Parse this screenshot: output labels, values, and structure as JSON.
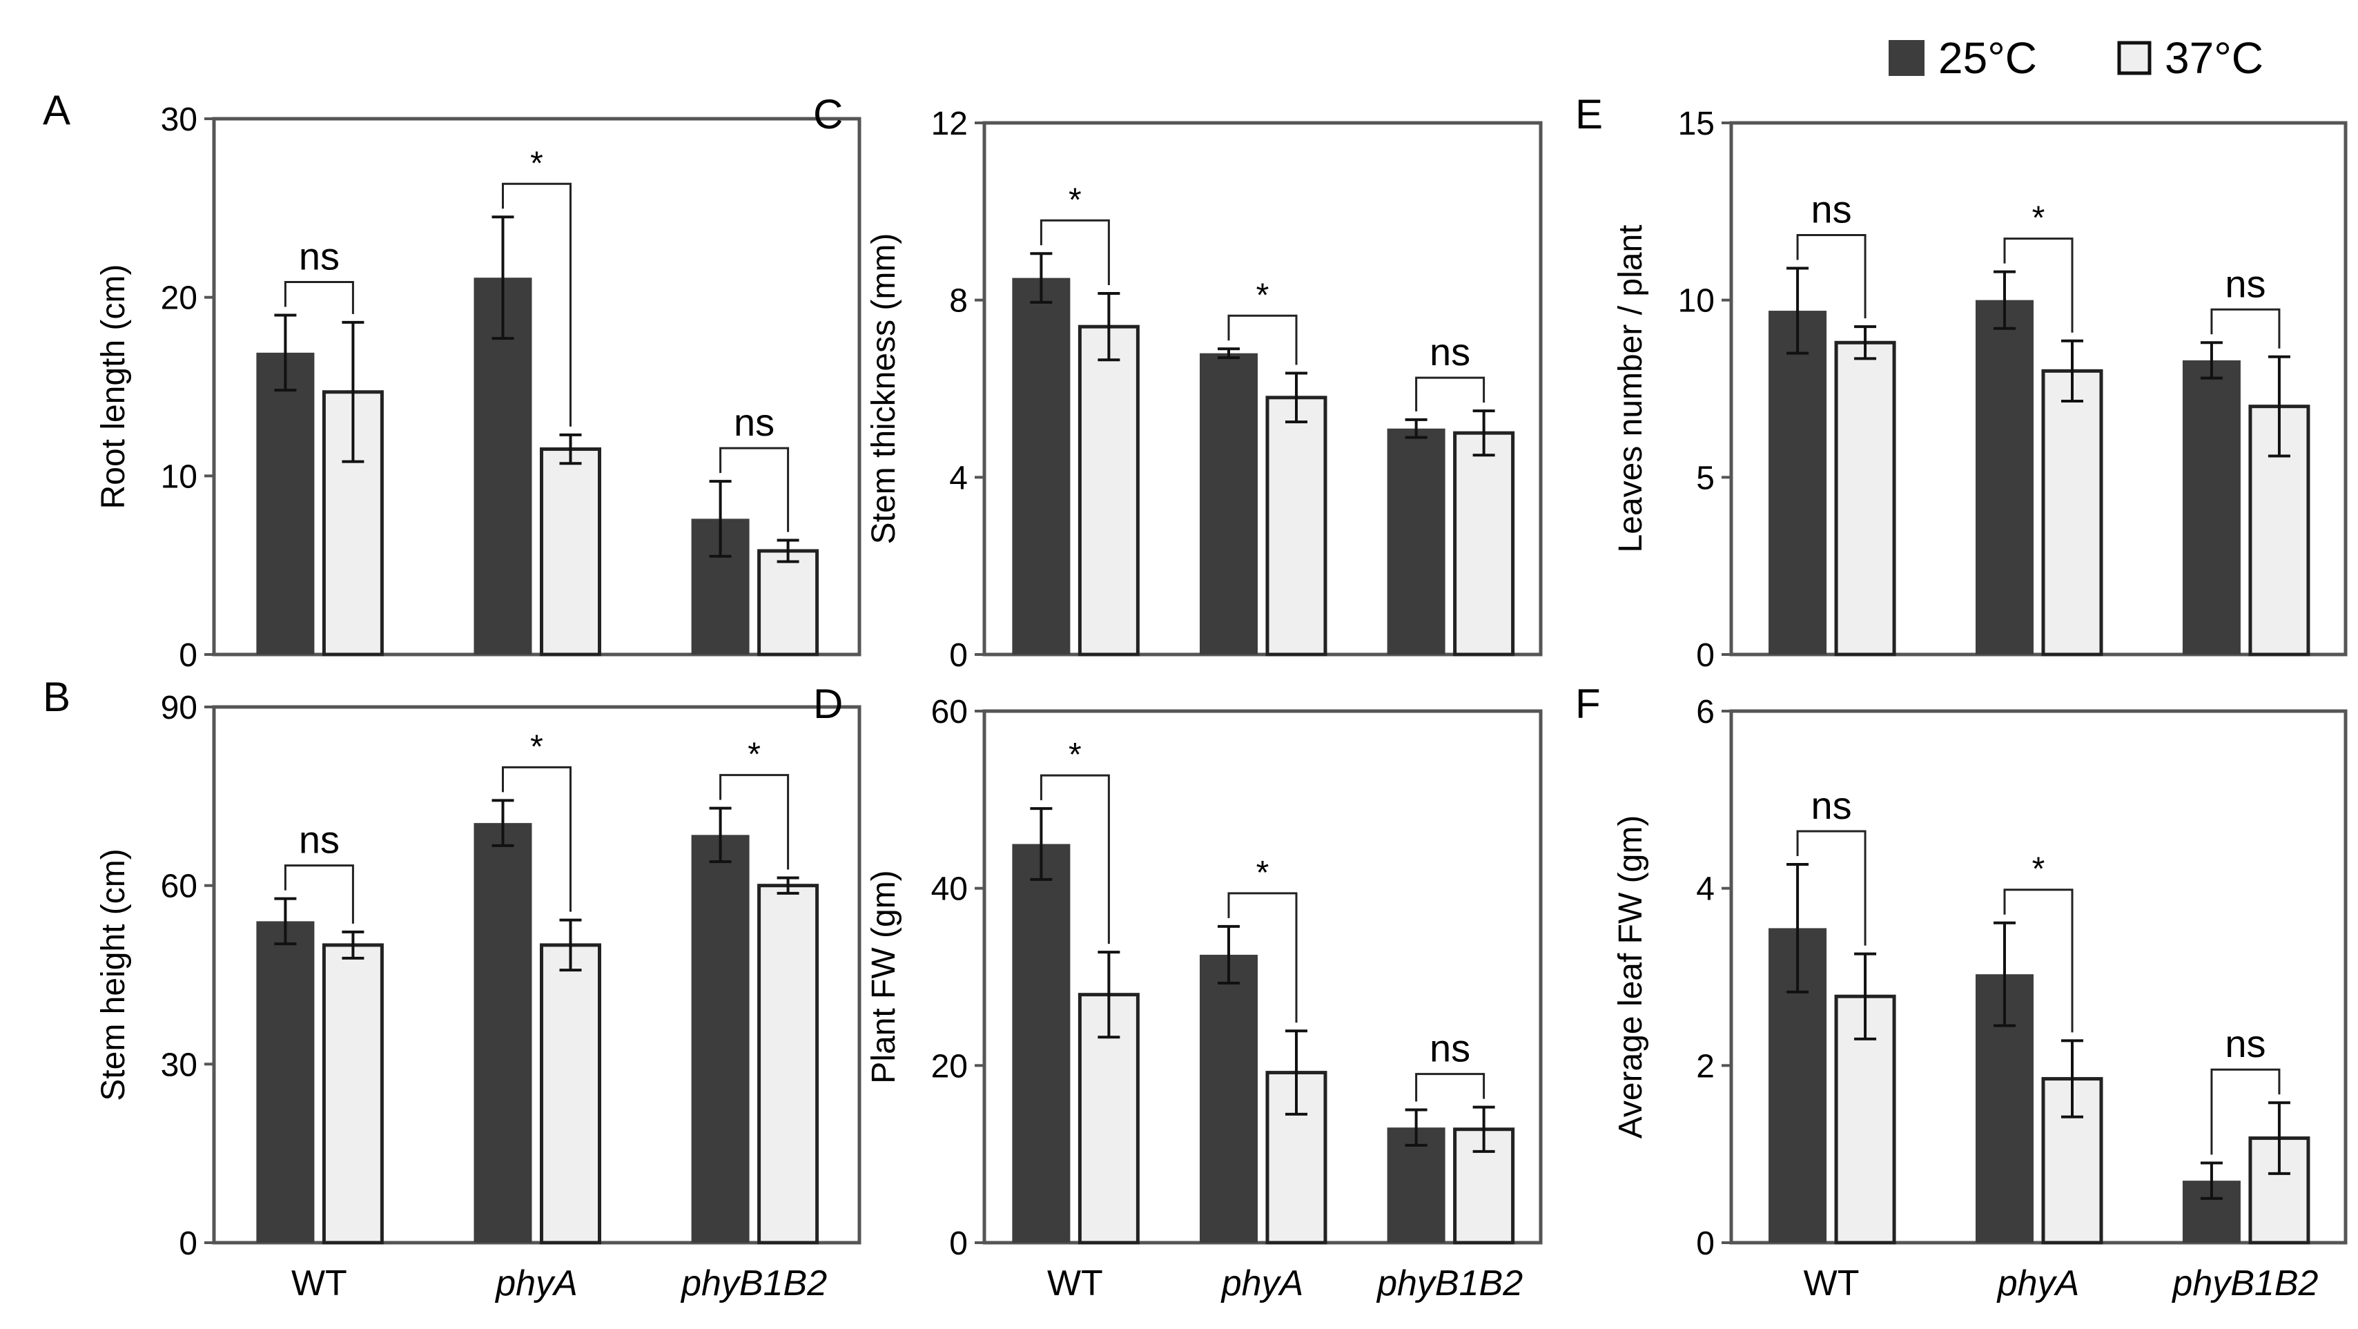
{
  "legend": [
    {
      "label": "25°C",
      "color": "#3d3d3d"
    },
    {
      "label": "37°C",
      "color": "#efefef"
    }
  ],
  "categories": [
    "WT",
    "phyA",
    "phyB1B2"
  ],
  "colors": {
    "dark": "#3d3d3d",
    "light": "#efefef",
    "axis": "#555555",
    "whisker": "#111111"
  },
  "chart_data": [
    {
      "id": "A",
      "type": "bar",
      "ylabel": "Root length (cm)",
      "ylim": [
        0,
        30
      ],
      "yticks": [
        0,
        10,
        20,
        30
      ],
      "categories": [
        "WT",
        "phyA",
        "phyB1B2"
      ],
      "series": [
        {
          "name": "25°C",
          "values": [
            16.9,
            21.1,
            7.6
          ],
          "errors": [
            2.1,
            3.4,
            2.1
          ]
        },
        {
          "name": "37°C",
          "values": [
            14.7,
            11.5,
            5.8
          ],
          "errors": [
            3.9,
            0.8,
            0.6
          ]
        }
      ],
      "significance": [
        "ns",
        "*",
        "ns"
      ]
    },
    {
      "id": "B",
      "type": "bar",
      "ylabel": "Stem height (cm)",
      "ylim": [
        0,
        90
      ],
      "yticks": [
        0,
        30,
        60,
        90
      ],
      "categories": [
        "WT",
        "phyA",
        "phyB1B2"
      ],
      "series": [
        {
          "name": "25°C",
          "values": [
            54,
            70.5,
            68.5
          ],
          "errors": [
            3.8,
            3.8,
            4.5
          ]
        },
        {
          "name": "37°C",
          "values": [
            50,
            50,
            60
          ],
          "errors": [
            2.2,
            4.2,
            1.3
          ]
        }
      ],
      "significance": [
        "ns",
        "*",
        "*"
      ]
    },
    {
      "id": "C",
      "type": "bar",
      "ylabel": "Stem thickness (mm)",
      "ylim": [
        0,
        12
      ],
      "yticks": [
        0,
        4,
        8,
        12
      ],
      "categories": [
        "WT",
        "phyA",
        "phyB1B2"
      ],
      "series": [
        {
          "name": "25°C",
          "values": [
            8.5,
            6.8,
            5.1
          ],
          "errors": [
            0.55,
            0.1,
            0.2
          ]
        },
        {
          "name": "37°C",
          "values": [
            7.4,
            5.8,
            5.0
          ],
          "errors": [
            0.75,
            0.55,
            0.5
          ]
        }
      ],
      "significance": [
        "*",
        "*",
        "ns"
      ]
    },
    {
      "id": "D",
      "type": "bar",
      "ylabel": "Plant FW (gm)",
      "ylim": [
        0,
        60
      ],
      "yticks": [
        0,
        20,
        40,
        60
      ],
      "categories": [
        "WT",
        "phyA",
        "phyB1B2"
      ],
      "series": [
        {
          "name": "25°C",
          "values": [
            45,
            32.5,
            13
          ],
          "errors": [
            4,
            3.2,
            2
          ]
        },
        {
          "name": "37°C",
          "values": [
            28,
            19.2,
            12.8
          ],
          "errors": [
            4.8,
            4.7,
            2.5
          ]
        }
      ],
      "significance": [
        "*",
        "*",
        "ns"
      ]
    },
    {
      "id": "E",
      "type": "bar",
      "ylabel": "Leaves number / plant",
      "ylim": [
        0,
        15
      ],
      "yticks": [
        0,
        5,
        10,
        15
      ],
      "categories": [
        "WT",
        "phyA",
        "phyB1B2"
      ],
      "series": [
        {
          "name": "25°C",
          "values": [
            9.7,
            10.0,
            8.3
          ],
          "errors": [
            1.2,
            0.8,
            0.5
          ]
        },
        {
          "name": "37°C",
          "values": [
            8.8,
            8.0,
            7.0
          ],
          "errors": [
            0.45,
            0.85,
            1.4
          ]
        }
      ],
      "significance": [
        "ns",
        "*",
        "ns"
      ]
    },
    {
      "id": "F",
      "type": "bar",
      "ylabel": "Average leaf FW (gm)",
      "ylim": [
        0,
        6
      ],
      "yticks": [
        0,
        2,
        4,
        6
      ],
      "categories": [
        "WT",
        "phyA",
        "phyB1B2"
      ],
      "series": [
        {
          "name": "25°C",
          "values": [
            3.55,
            3.03,
            0.7
          ],
          "errors": [
            0.72,
            0.58,
            0.2
          ]
        },
        {
          "name": "37°C",
          "values": [
            2.78,
            1.85,
            1.18
          ],
          "errors": [
            0.48,
            0.43,
            0.4
          ]
        }
      ],
      "significance": [
        "ns",
        "*",
        "ns"
      ]
    }
  ]
}
